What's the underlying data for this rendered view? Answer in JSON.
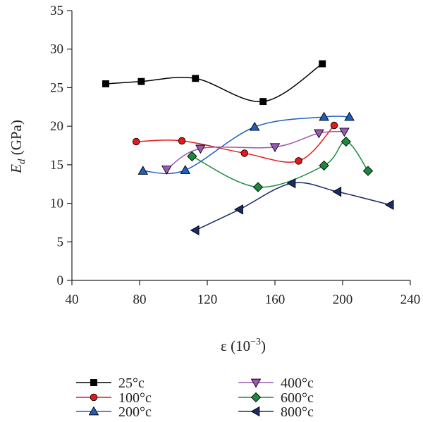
{
  "chart_data": {
    "type": "line",
    "xlabel": "ε (10",
    "xlabel_sup": "−3",
    "xlabel_close": ")",
    "ylabel_main": "E",
    "ylabel_sub": "d",
    "ylabel_unit": " (GPa)",
    "xlim": [
      40,
      240
    ],
    "ylim": [
      0,
      35
    ],
    "x_ticks": [
      40,
      80,
      120,
      160,
      200,
      240
    ],
    "y_ticks": [
      0,
      5,
      10,
      15,
      20,
      25,
      30,
      35
    ],
    "grid": false,
    "legend_position": "bottom",
    "series": [
      {
        "name": "25°c",
        "color": "#000000",
        "marker": "square",
        "points": [
          [
            60,
            25.5
          ],
          [
            81,
            25.8
          ],
          [
            113,
            26.2
          ],
          [
            153,
            23.2
          ],
          [
            188,
            28.1
          ]
        ]
      },
      {
        "name": "100°c",
        "color": "#e31a1c",
        "marker": "circle",
        "points": [
          [
            78,
            18.0
          ],
          [
            105,
            18.1
          ],
          [
            142,
            16.5
          ],
          [
            174,
            15.5
          ],
          [
            195,
            20.1
          ]
        ]
      },
      {
        "name": "200°c",
        "color": "#1f5fbf",
        "marker": "triangle-up",
        "points": [
          [
            82,
            14.2
          ],
          [
            107,
            14.3
          ],
          [
            148,
            19.9
          ],
          [
            189,
            21.2
          ],
          [
            204,
            21.2
          ]
        ]
      },
      {
        "name": "400°c",
        "color": "#9b59b6",
        "marker": "triangle-down",
        "points": [
          [
            96,
            14.4
          ],
          [
            116,
            17.1
          ],
          [
            160,
            17.3
          ],
          [
            186,
            19.1
          ],
          [
            201,
            19.3
          ]
        ]
      },
      {
        "name": "600°c",
        "color": "#1a8a3c",
        "marker": "diamond",
        "points": [
          [
            111,
            16.1
          ],
          [
            150,
            12.1
          ],
          [
            189,
            14.9
          ],
          [
            202,
            18.0
          ],
          [
            215,
            14.2
          ]
        ]
      },
      {
        "name": "800°c",
        "color": "#1b2a6b",
        "marker": "triangle-left",
        "points": [
          [
            113,
            6.5
          ],
          [
            139,
            9.2
          ],
          [
            170,
            12.6
          ],
          [
            197,
            11.5
          ],
          [
            228,
            9.8
          ]
        ]
      }
    ]
  }
}
